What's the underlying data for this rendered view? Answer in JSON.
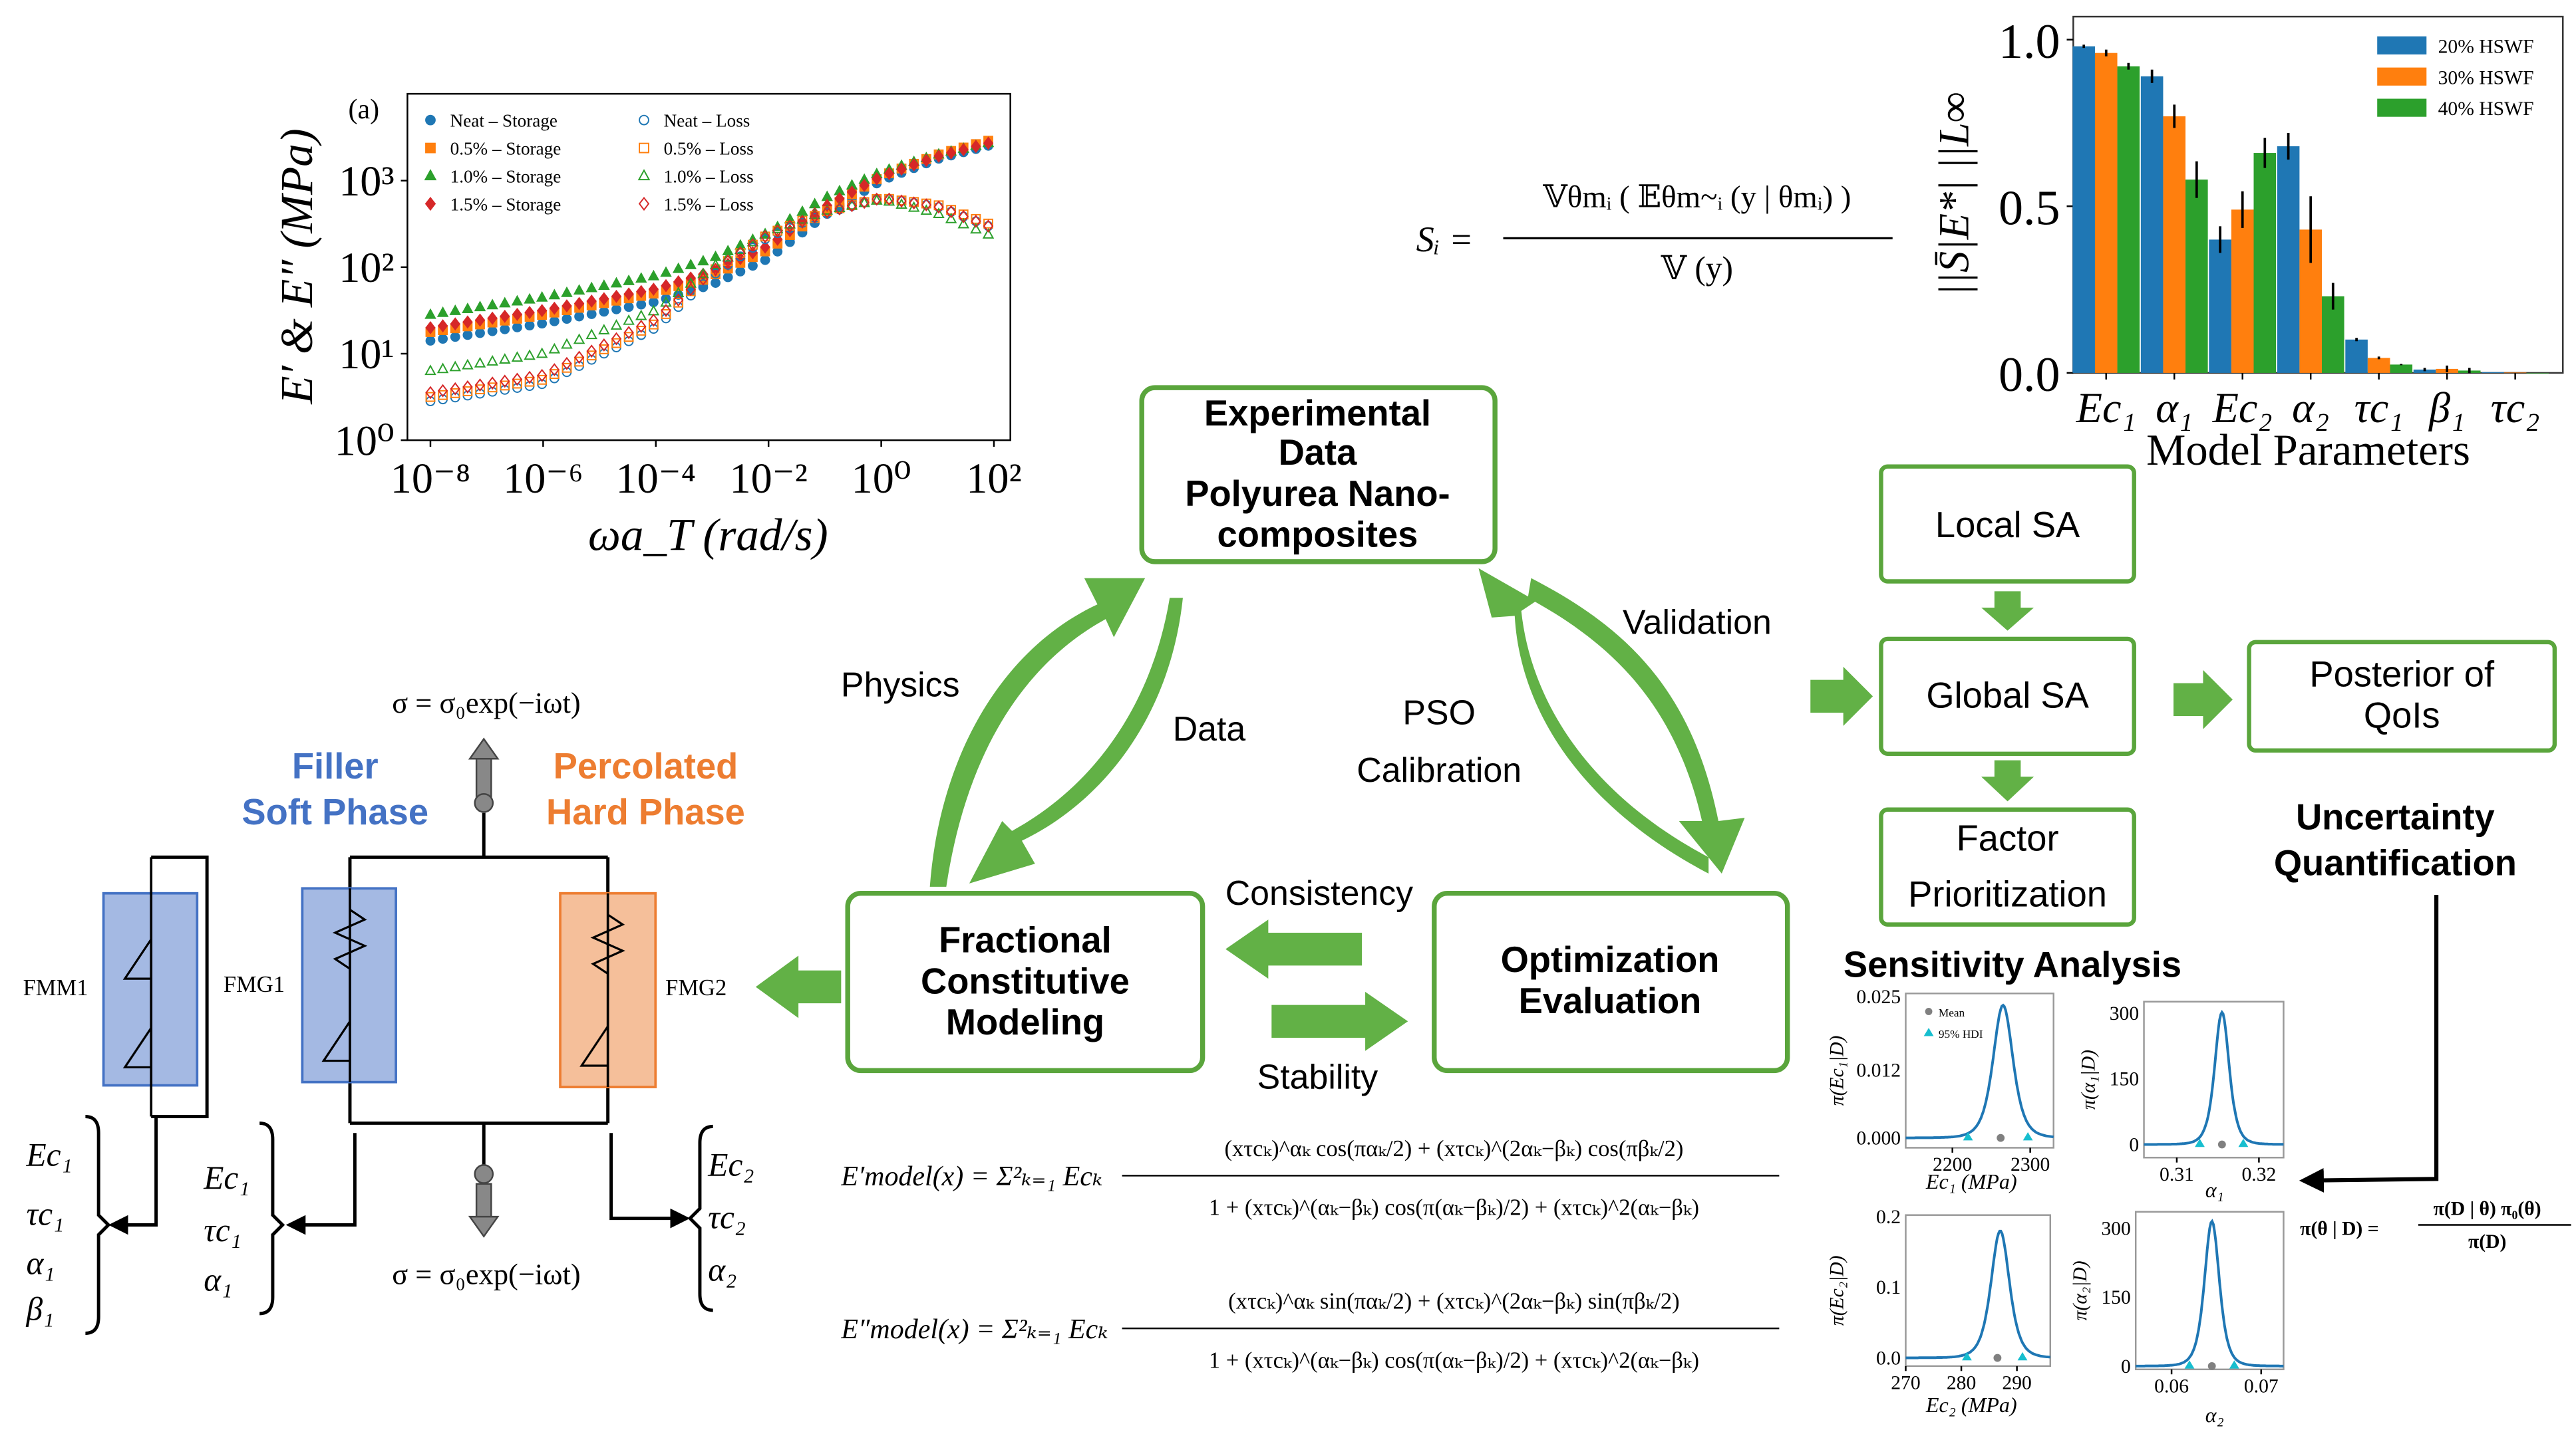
{
  "colors": {
    "green": "#62b146",
    "box_border": "#5aa53c",
    "soft_blue": "#4472c4",
    "hard_orange": "#ed7d31",
    "blue_fill": "#a4b9e3",
    "orange_fill": "#f5bf9a"
  },
  "flow": {
    "experimental": [
      "Experimental",
      "Data",
      "Polyurea Nano-",
      "composites"
    ],
    "fractional": [
      "Fractional",
      "Constitutive",
      "Modeling"
    ],
    "optimization": [
      "Optimization",
      "Evaluation"
    ],
    "labels": {
      "physics": "Physics",
      "data": "Data",
      "pso": "PSO",
      "calibration": "Calibration",
      "validation": "Validation",
      "consistency": "Consistency",
      "stability": "Stability"
    }
  },
  "sensitivity": {
    "local": "Local SA",
    "global": "Global SA",
    "factor": [
      "Factor",
      "Prioritization"
    ],
    "posterior": [
      "Posterior of",
      "QoIs"
    ],
    "title": "Sensitivity Analysis",
    "uq": [
      "Uncertainty",
      "Quantification"
    ]
  },
  "formulas": {
    "si_lhs": "Sᵢ =",
    "si_num": "𝕍θmᵢ ( 𝔼θm~ᵢ (y | θmᵢ) )",
    "si_den": "𝕍 (y)",
    "bayes_lhs": "π(θ | D) =",
    "bayes_num": "π(D | θ) π₀(θ)",
    "bayes_den": "π(D)",
    "storage_lhs": "E′model(x) = Σ²ₖ₌₁ Ecₖ",
    "storage_num": "(xτcₖ)^αₖ cos(παₖ/2) + (xτcₖ)^(2αₖ−βₖ) cos(πβₖ/2)",
    "storage_den": "1 + (xτcₖ)^(αₖ−βₖ) cos(π(αₖ−βₖ)/2) + (xτcₖ)^2(αₖ−βₖ)",
    "loss_lhs": "E″model(x) = Σ²ₖ₌₁ Ecₖ",
    "loss_num": "(xτcₖ)^αₖ sin(παₖ/2) + (xτcₖ)^(2αₖ−βₖ) sin(πβₖ/2)",
    "loss_den": "1 + (xτcₖ)^(αₖ−βₖ) cos(π(αₖ−βₖ)/2) + (xτcₖ)^2(αₖ−βₖ)"
  },
  "mechanical": {
    "sigma_top": "σ = σ₀exp(−iωt)",
    "sigma_bottom": "σ = σ₀exp(−iωt)",
    "filler": [
      "Filler",
      "Soft Phase"
    ],
    "percolated": [
      "Percolated",
      "Hard Phase"
    ],
    "elements": [
      "FMM1",
      "FMG1",
      "FMG2"
    ],
    "params_fmm1": [
      "Ec₁",
      "τc₁",
      "α₁",
      "β₁"
    ],
    "params_fmg1": [
      "Ec₁",
      "τc₁",
      "α₁"
    ],
    "params_fmg2": [
      "Ec₂",
      "τc₂",
      "α₂"
    ]
  },
  "chart_data": [
    {
      "type": "scatter",
      "panel_label": "(a)",
      "xlabel": "ωa_T (rad/s)",
      "ylabel": "E′ & E″ (MPa)",
      "x_scale": "log",
      "y_scale": "log",
      "xlim_log10": [
        -8.4,
        2.3
      ],
      "ylim_log10": [
        0,
        4
      ],
      "xticks": [
        "10⁻⁸",
        "10⁻⁶",
        "10⁻⁴",
        "10⁻²",
        "10⁰",
        "10²"
      ],
      "yticks": [
        "10⁰",
        "10¹",
        "10²",
        "10³"
      ],
      "legend_position": "top-left",
      "x_log10": [
        -8,
        -6,
        -4,
        -3,
        -2,
        -1,
        0,
        1,
        2
      ],
      "series": [
        {
          "name": "Neat – Storage",
          "color": "#1f77b4",
          "marker": "circle",
          "filled": true,
          "log10_values": [
            1.15,
            1.35,
            1.6,
            1.8,
            2.1,
            2.6,
            3.0,
            3.25,
            3.42
          ]
        },
        {
          "name": "0.5% – Storage",
          "color": "#ff7f0e",
          "marker": "square",
          "filled": true,
          "log10_values": [
            1.25,
            1.45,
            1.7,
            1.9,
            2.2,
            2.65,
            3.05,
            3.3,
            3.48
          ]
        },
        {
          "name": "1.0% – Storage",
          "color": "#2ca02c",
          "marker": "triangle",
          "filled": true,
          "log10_values": [
            1.45,
            1.65,
            1.9,
            2.1,
            2.4,
            2.8,
            3.1,
            3.3,
            3.45
          ]
        },
        {
          "name": "1.5% – Storage",
          "color": "#d62728",
          "marker": "diamond",
          "filled": true,
          "log10_values": [
            1.3,
            1.5,
            1.75,
            1.95,
            2.25,
            2.7,
            3.05,
            3.28,
            3.45
          ]
        },
        {
          "name": "Neat – Loss",
          "color": "#1f77b4",
          "marker": "circle",
          "filled": false,
          "log10_values": [
            0.45,
            0.65,
            1.3,
            1.9,
            2.35,
            2.62,
            2.8,
            2.7,
            2.45
          ]
        },
        {
          "name": "0.5% – Loss",
          "color": "#ff7f0e",
          "marker": "square",
          "filled": false,
          "log10_values": [
            0.5,
            0.7,
            1.35,
            1.95,
            2.38,
            2.64,
            2.8,
            2.72,
            2.48
          ]
        },
        {
          "name": "1.0% – Loss",
          "color": "#2ca02c",
          "marker": "triangle",
          "filled": false,
          "log10_values": [
            0.8,
            1.0,
            1.5,
            2.0,
            2.4,
            2.65,
            2.78,
            2.62,
            2.35
          ]
        },
        {
          "name": "1.5% – Loss",
          "color": "#d62728",
          "marker": "diamond",
          "filled": false,
          "log10_values": [
            0.55,
            0.75,
            1.4,
            1.95,
            2.38,
            2.63,
            2.8,
            2.7,
            2.45
          ]
        }
      ]
    },
    {
      "type": "bar",
      "xlabel": "Model Parameters",
      "ylabel": "||S̄|E*| ||L∞",
      "ylim": [
        0,
        1.0
      ],
      "yticks": [
        "0.0",
        "0.5",
        "1.0"
      ],
      "legend_position": "top-right",
      "categories": [
        "Ec₁",
        "α₁",
        "Ec₂",
        "α₂",
        "τc₁",
        "β₁",
        "τc₂"
      ],
      "series": [
        {
          "name": "20% HSWF",
          "color": "#1f77b4",
          "values": [
            0.98,
            0.89,
            0.4,
            0.68,
            0.1,
            0.01,
            0.002
          ],
          "errors": [
            0.005,
            0.02,
            0.04,
            0.04,
            0.005,
            0.005,
            0.0
          ]
        },
        {
          "name": "30% HSWF",
          "color": "#ff7f0e",
          "values": [
            0.96,
            0.77,
            0.49,
            0.43,
            0.045,
            0.012,
            0.001
          ],
          "errors": [
            0.01,
            0.035,
            0.055,
            0.1,
            0.004,
            0.01,
            0.0
          ]
        },
        {
          "name": "40% HSWF",
          "color": "#2ca02c",
          "values": [
            0.92,
            0.58,
            0.66,
            0.23,
            0.025,
            0.007,
            0.0
          ],
          "errors": [
            0.01,
            0.055,
            0.045,
            0.04,
            0.002,
            0.008,
            0.0
          ]
        }
      ]
    },
    {
      "type": "line",
      "xlabel": "Ec₁ (MPa)",
      "ylabel": "π(Ec₁|D)",
      "xlim": [
        2140,
        2330
      ],
      "ylim": [
        0,
        0.025
      ],
      "xticks": [
        "2200",
        "2300"
      ],
      "yticks": [
        "0.000",
        "0.012",
        "0.025"
      ],
      "mode": 2265,
      "peak_density": 0.0235,
      "mean": 2262,
      "hdi_95": [
        2220,
        2297
      ],
      "legend": [
        "Mean",
        "95% HDI"
      ],
      "legend_position": "top-left"
    },
    {
      "type": "line",
      "xlabel": "α₁",
      "ylabel": "π(α₁|D)",
      "xlim": [
        0.306,
        0.323
      ],
      "ylim": [
        0,
        320
      ],
      "xticks": [
        "0.31",
        "0.32"
      ],
      "yticks": [
        "0",
        "150",
        "300"
      ],
      "mode": 0.3155,
      "peak_density": 302,
      "mean": 0.3155,
      "hdi_95": [
        0.3128,
        0.3181
      ]
    },
    {
      "type": "line",
      "xlabel": "Ec₂ (MPa)",
      "ylabel": "π(Ec₂|D)",
      "xlim": [
        270,
        296
      ],
      "ylim": [
        0,
        0.2
      ],
      "xticks": [
        "270",
        "280",
        "290"
      ],
      "yticks": [
        "0.0",
        "0.1",
        "0.2"
      ],
      "mode": 287,
      "peak_density": 0.18,
      "mean": 286.5,
      "hdi_95": [
        281,
        291
      ]
    },
    {
      "type": "line",
      "xlabel": "α₂",
      "ylabel": "π(α₂|D)",
      "xlim": [
        0.056,
        0.0725
      ],
      "ylim": [
        0,
        330
      ],
      "xticks": [
        "0.06",
        "0.07"
      ],
      "yticks": [
        "0",
        "150",
        "300"
      ],
      "mode": 0.0645,
      "peak_density": 315,
      "mean": 0.0645,
      "hdi_95": [
        0.062,
        0.067
      ]
    }
  ]
}
